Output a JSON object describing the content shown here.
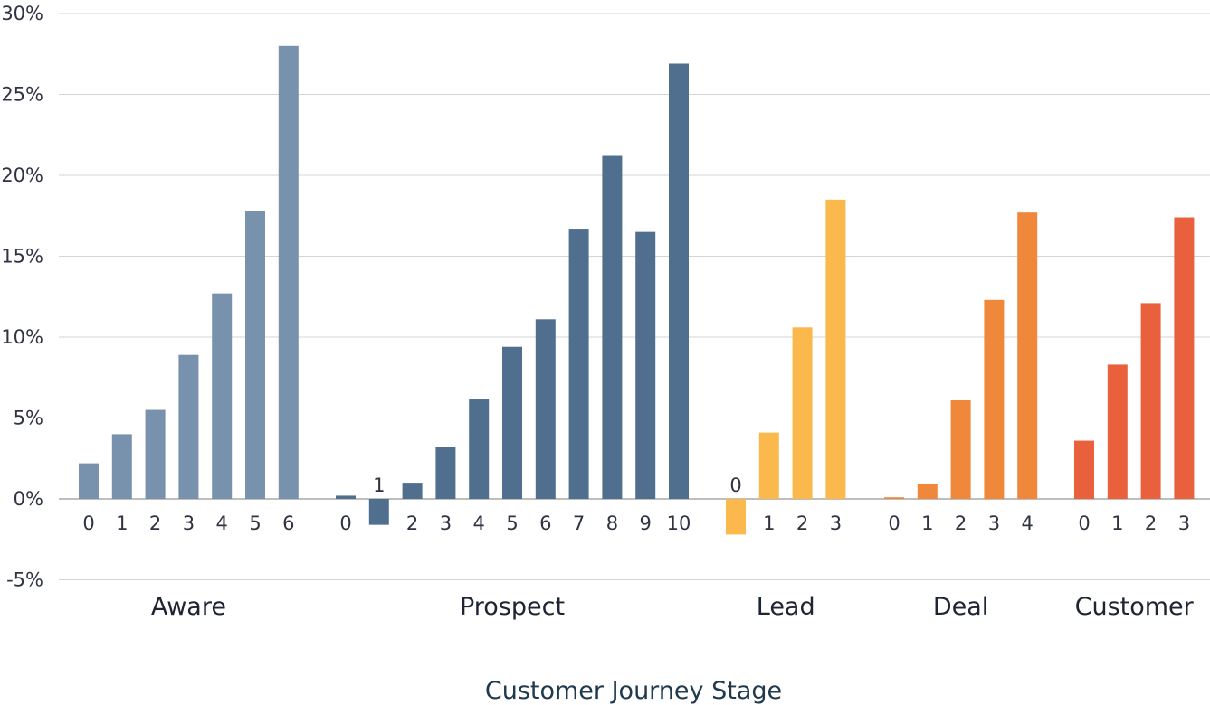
{
  "chart_data": {
    "type": "bar",
    "xlabel": "Customer Journey Stage",
    "ylabel": "",
    "ylim": [
      -5,
      30
    ],
    "yticks": [
      {
        "value": 30,
        "label": "30%"
      },
      {
        "value": 25,
        "label": "25%"
      },
      {
        "value": 20,
        "label": "20%"
      },
      {
        "value": 15,
        "label": "15%"
      },
      {
        "value": 10,
        "label": "10%"
      },
      {
        "value": 5,
        "label": "5%"
      },
      {
        "value": 0,
        "label": "0%"
      },
      {
        "value": -5,
        "label": "-5%"
      }
    ],
    "grid": true,
    "groups": [
      {
        "name": "Aware",
        "color": "#7891ad",
        "categories": [
          "0",
          "1",
          "2",
          "3",
          "4",
          "5",
          "6"
        ],
        "values": [
          2.2,
          4.0,
          5.5,
          8.9,
          12.7,
          17.8,
          28.0
        ]
      },
      {
        "name": "Prospect",
        "color": "#506f8f",
        "categories": [
          "0",
          "1",
          "2",
          "3",
          "4",
          "5",
          "6",
          "7",
          "8",
          "9",
          "10"
        ],
        "values": [
          0.2,
          -1.6,
          1.0,
          3.2,
          6.2,
          9.4,
          11.1,
          16.7,
          21.2,
          16.5,
          26.9
        ]
      },
      {
        "name": "Lead",
        "color": "#fbb94d",
        "categories": [
          "0",
          "1",
          "2",
          "3"
        ],
        "values": [
          -2.2,
          4.1,
          10.6,
          18.5
        ]
      },
      {
        "name": "Deal",
        "color": "#f0883b",
        "categories": [
          "0",
          "1",
          "2",
          "3",
          "4"
        ],
        "values": [
          0.1,
          0.9,
          6.1,
          12.3,
          17.7
        ]
      },
      {
        "name": "Customer",
        "color": "#e8603c",
        "categories": [
          "0",
          "1",
          "2",
          "3"
        ],
        "values": [
          3.6,
          8.3,
          12.1,
          17.4
        ]
      }
    ]
  }
}
